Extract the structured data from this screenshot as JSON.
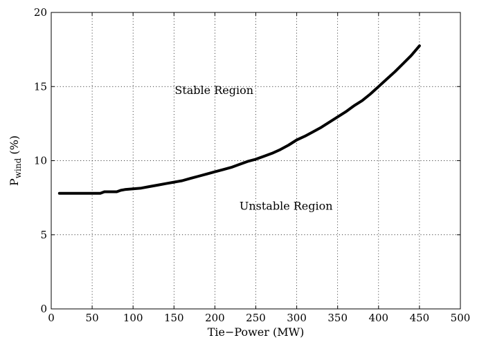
{
  "chart_data": {
    "type": "line",
    "title": "",
    "xlabel": "Tie−Power (MW)",
    "ylabel": {
      "base": "P",
      "subscript": "wind",
      "suffix": " (%)"
    },
    "xlim": [
      0,
      500
    ],
    "ylim": [
      0,
      20
    ],
    "xticks": [
      "0",
      "50",
      "100",
      "150",
      "200",
      "250",
      "300",
      "350",
      "400",
      "450",
      "500"
    ],
    "yticks": [
      "0",
      "5",
      "10",
      "15",
      "20"
    ],
    "grid": true,
    "legend": "none",
    "annotations": [
      {
        "text": "Stable Region",
        "x": 199,
        "y": 14.5
      },
      {
        "text": "Unstable Region",
        "x": 287,
        "y": 6.7
      }
    ],
    "series": [
      {
        "color": "#000000",
        "x": [
          10,
          20,
          30,
          40,
          50,
          60,
          65,
          70,
          80,
          85,
          90,
          100,
          110,
          120,
          130,
          140,
          150,
          160,
          170,
          180,
          190,
          200,
          210,
          220,
          230,
          240,
          250,
          260,
          270,
          280,
          290,
          300,
          310,
          320,
          330,
          340,
          350,
          360,
          370,
          380,
          390,
          400,
          410,
          420,
          430,
          440,
          450
        ],
        "y": [
          7.8,
          7.8,
          7.8,
          7.8,
          7.8,
          7.8,
          7.9,
          7.9,
          7.9,
          8.0,
          8.05,
          8.1,
          8.15,
          8.25,
          8.35,
          8.45,
          8.55,
          8.65,
          8.8,
          8.95,
          9.1,
          9.25,
          9.4,
          9.55,
          9.75,
          9.95,
          10.1,
          10.3,
          10.5,
          10.75,
          11.05,
          11.4,
          11.65,
          11.95,
          12.25,
          12.6,
          12.95,
          13.3,
          13.7,
          14.05,
          14.5,
          15.0,
          15.5,
          16.0,
          16.55,
          17.1,
          17.75
        ]
      }
    ]
  }
}
